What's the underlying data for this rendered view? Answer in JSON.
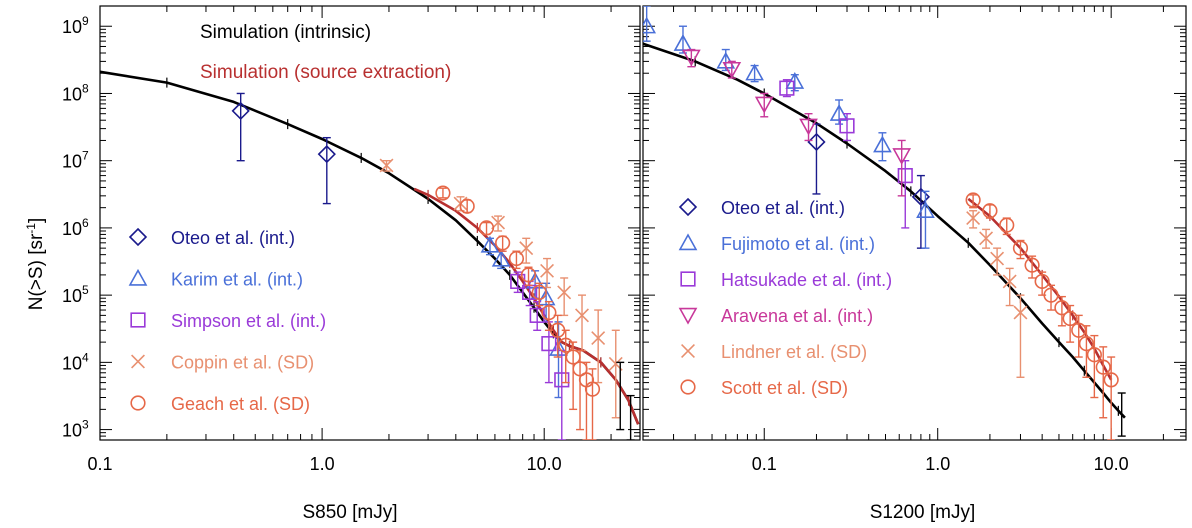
{
  "ylabel": "N(>S) [sr",
  "ylabel_sup": "-1",
  "ylabel_end": "]",
  "colors": {
    "oteo": "#1a1a8c",
    "karim": "#4a70d8",
    "simpson": "#9a3ad8",
    "coppin": "#e89070",
    "geach": "#e66848",
    "fujimoto": "#4a70d8",
    "hatsukade": "#9a3ad8",
    "aravena": "#c8389a",
    "lindner": "#e89070",
    "scott": "#e66848",
    "sim_intrinsic": "#000000",
    "sim_extract": "#b83030"
  },
  "y_ticks": [
    {
      "exp": "3",
      "v": 1000
    },
    {
      "exp": "4",
      "v": 10000
    },
    {
      "exp": "5",
      "v": 100000
    },
    {
      "exp": "6",
      "v": 1000000
    },
    {
      "exp": "7",
      "v": 10000000
    },
    {
      "exp": "8",
      "v": 100000000
    },
    {
      "exp": "9",
      "v": 1000000000
    }
  ],
  "chart_data": [
    {
      "type": "scatter",
      "xlabel": "S850 [mJy]",
      "ylabel": "N(>S) [sr-1]",
      "x_scale": "log",
      "y_scale": "log",
      "xlim": [
        0.1,
        27
      ],
      "ylim": [
        700,
        2000000000
      ],
      "x_ticks": [
        {
          "label": "0.1",
          "v": 0.1
        },
        {
          "label": "1.0",
          "v": 1.0
        },
        {
          "label": "10.0",
          "v": 10.0
        }
      ],
      "legend_top": [
        {
          "label": "Simulation (intrinsic)",
          "color": "#000000"
        },
        {
          "label": "Simulation (source extraction)",
          "color": "#b83030"
        }
      ],
      "legend": [
        {
          "label": "Oteo et al. (int.)",
          "marker": "diamond",
          "key": "oteo"
        },
        {
          "label": "Karim et al. (int.)",
          "marker": "triangle",
          "key": "karim"
        },
        {
          "label": "Simpson et al. (int.)",
          "marker": "square",
          "key": "simpson"
        },
        {
          "label": "Coppin et al. (SD)",
          "marker": "cross",
          "key": "coppin"
        },
        {
          "label": "Geach et al. (SD)",
          "marker": "circle",
          "key": "geach"
        }
      ],
      "curves": [
        {
          "name": "Simulation (intrinsic)",
          "key": "sim_intrinsic",
          "x": [
            0.1,
            0.2,
            0.4,
            0.7,
            1.0,
            1.5,
            2.0,
            3.0,
            4.0,
            5.0,
            6.0,
            7.0,
            8.0,
            9.0,
            10.0,
            11.0,
            12.0,
            13.0,
            15.0,
            18.0,
            21.0,
            24.0,
            26.5
          ],
          "y": [
            210000000,
            145000000,
            75000000,
            35000000,
            21000000,
            11000000,
            6500000,
            2700000,
            1300000,
            640000,
            350000,
            200000,
            110000,
            65000,
            40000,
            27000,
            20000,
            17500,
            15000,
            10000,
            5500,
            2700,
            1200
          ]
        },
        {
          "name": "Simulation (source extraction)",
          "key": "sim_extract",
          "x": [
            2.6,
            3.0,
            4.0,
            5.0,
            6.0,
            7.0,
            8.0,
            9.0,
            10.0,
            11.0,
            12.0,
            13.0,
            15.0,
            18.0,
            21.0,
            24.0,
            26.5
          ],
          "y": [
            3800000,
            3100000,
            1800000,
            1000000,
            550000,
            300000,
            160000,
            90000,
            50000,
            30000,
            20000,
            17500,
            15000,
            10000,
            5500,
            2700,
            1200
          ]
        }
      ],
      "series": [
        {
          "key": "oteo",
          "marker": "diamond",
          "points": [
            {
              "x": 0.43,
              "y": 55000000,
              "lo": 10000000,
              "hi": 100000000
            },
            {
              "x": 1.05,
              "y": 12500000,
              "lo": 2300000,
              "hi": 22000000
            }
          ]
        },
        {
          "key": "karim",
          "marker": "triangle",
          "points": [
            {
              "x": 5.7,
              "y": 550000,
              "lo": 400000,
              "hi": 700000
            },
            {
              "x": 6.4,
              "y": 340000,
              "lo": 250000,
              "hi": 450000
            },
            {
              "x": 9.1,
              "y": 160000,
              "lo": 90000,
              "hi": 230000
            },
            {
              "x": 10.2,
              "y": 90000,
              "lo": 40000,
              "hi": 150000
            },
            {
              "x": 11.6,
              "y": 16000,
              "lo": 3000,
              "hi": 40000
            }
          ]
        },
        {
          "key": "simpson",
          "marker": "square",
          "points": [
            {
              "x": 7.6,
              "y": 160000,
              "lo": 110000,
              "hi": 220000
            },
            {
              "x": 8.6,
              "y": 110000,
              "lo": 70000,
              "hi": 160000
            },
            {
              "x": 9.3,
              "y": 50000,
              "lo": 30000,
              "hi": 80000
            },
            {
              "x": 10.5,
              "y": 19000,
              "lo": 5000,
              "hi": 40000
            },
            {
              "x": 12.0,
              "y": 5500,
              "lo": 700,
              "hi": 15000
            }
          ]
        },
        {
          "key": "coppin",
          "marker": "cross",
          "points": [
            {
              "x": 1.95,
              "y": 8500000,
              "lo": 7000000,
              "hi": 10000000
            },
            {
              "x": 4.2,
              "y": 2300000,
              "lo": 1800000,
              "hi": 2900000
            },
            {
              "x": 6.2,
              "y": 1200000,
              "lo": 900000,
              "hi": 1500000
            },
            {
              "x": 8.3,
              "y": 500000,
              "lo": 300000,
              "hi": 700000
            },
            {
              "x": 10.3,
              "y": 230000,
              "lo": 130000,
              "hi": 350000
            },
            {
              "x": 12.3,
              "y": 110000,
              "lo": 50000,
              "hi": 180000
            },
            {
              "x": 14.8,
              "y": 50000,
              "lo": 15000,
              "hi": 100000
            },
            {
              "x": 17.5,
              "y": 23000,
              "lo": 5000,
              "hi": 60000
            },
            {
              "x": 21.0,
              "y": 9500,
              "lo": 1500,
              "hi": 30000
            }
          ]
        },
        {
          "key": "geach",
          "marker": "circle",
          "points": [
            {
              "x": 3.5,
              "y": 3300000,
              "lo": 2800000,
              "hi": 3900000
            },
            {
              "x": 4.5,
              "y": 2100000,
              "lo": 1700000,
              "hi": 2600000
            },
            {
              "x": 5.5,
              "y": 1000000,
              "lo": 800000,
              "hi": 1200000
            },
            {
              "x": 6.5,
              "y": 600000,
              "lo": 450000,
              "hi": 750000
            },
            {
              "x": 7.5,
              "y": 350000,
              "lo": 250000,
              "hi": 450000
            },
            {
              "x": 8.5,
              "y": 200000,
              "lo": 140000,
              "hi": 260000
            },
            {
              "x": 9.5,
              "y": 110000,
              "lo": 70000,
              "hi": 150000
            },
            {
              "x": 10.5,
              "y": 55000,
              "lo": 30000,
              "hi": 80000
            },
            {
              "x": 11.5,
              "y": 30000,
              "lo": 12000,
              "hi": 50000
            },
            {
              "x": 12.5,
              "y": 18000,
              "lo": 5000,
              "hi": 30000
            },
            {
              "x": 13.5,
              "y": 12000,
              "lo": 2000,
              "hi": 20000
            },
            {
              "x": 14.5,
              "y": 8000,
              "lo": 1000,
              "hi": 15000
            },
            {
              "x": 15.5,
              "y": 5500,
              "lo": 700,
              "hi": 10000
            },
            {
              "x": 16.5,
              "y": 4000,
              "lo": 700,
              "hi": 8000
            }
          ]
        },
        {
          "key": "sim_intrinsic",
          "marker": "errorbar",
          "points": [
            {
              "x": 22.0,
              "y": 4200,
              "lo": 1000,
              "hi": 10000
            },
            {
              "x": 24.5,
              "y": 1800,
              "lo": 700,
              "hi": 3200
            }
          ]
        }
      ]
    },
    {
      "type": "scatter",
      "xlabel": "S1200 [mJy]",
      "ylabel": "N(>S) [sr-1]",
      "x_scale": "log",
      "y_scale": "log",
      "xlim": [
        0.02,
        27
      ],
      "ylim": [
        700,
        2000000000
      ],
      "x_ticks": [
        {
          "label": "0.1",
          "v": 0.1
        },
        {
          "label": "1.0",
          "v": 1.0
        },
        {
          "label": "10.0",
          "v": 10.0
        }
      ],
      "legend": [
        {
          "label": "Oteo et al. (int.)",
          "marker": "diamond",
          "key": "oteo"
        },
        {
          "label": "Fujimoto et al. (int.)",
          "marker": "triangle",
          "key": "fujimoto"
        },
        {
          "label": "Hatsukade et al. (int.)",
          "marker": "square",
          "key": "hatsukade"
        },
        {
          "label": "Aravena et al. (int.)",
          "marker": "itriangle",
          "key": "aravena"
        },
        {
          "label": "Lindner et al. (SD)",
          "marker": "cross",
          "key": "lindner"
        },
        {
          "label": "Scott et al. (SD)",
          "marker": "circle",
          "key": "scott"
        }
      ],
      "curves": [
        {
          "name": "Simulation (intrinsic)",
          "key": "sim_intrinsic",
          "x": [
            0.02,
            0.04,
            0.07,
            0.1,
            0.2,
            0.3,
            0.5,
            0.7,
            1.0,
            1.5,
            2.0,
            3.0,
            4.0,
            5.0,
            6.0,
            7.0,
            8.0,
            9.0,
            10.0,
            11.0,
            12.0
          ],
          "y": [
            550000000,
            300000000,
            160000000,
            100000000,
            36000000,
            18000000,
            7000000,
            3500000,
            1500000,
            600000,
            280000,
            90000,
            38000,
            20000,
            12000,
            7500,
            5000,
            3500,
            2500,
            1900,
            1500
          ]
        },
        {
          "name": "Simulation (source extraction)",
          "key": "sim_extract",
          "x": [
            1.5,
            2.0,
            3.0,
            4.0,
            5.0,
            6.0,
            7.0,
            8.0,
            9.0,
            10.0
          ],
          "y": [
            2700000,
            1500000,
            500000,
            200000,
            95000,
            50000,
            28000,
            16000,
            9000,
            5500
          ]
        }
      ],
      "series": [
        {
          "key": "oteo",
          "marker": "diamond",
          "points": [
            {
              "x": 0.2,
              "y": 19000000,
              "lo": 3200000,
              "hi": 35000000
            },
            {
              "x": 0.8,
              "y": 2900000,
              "lo": 500000,
              "hi": 6000000
            }
          ]
        },
        {
          "key": "fujimoto",
          "marker": "triangle",
          "points": [
            {
              "x": 0.021,
              "y": 1000000000,
              "lo": 600000000,
              "hi": 2000000000
            },
            {
              "x": 0.034,
              "y": 550000000,
              "lo": 400000000,
              "hi": 1000000000
            },
            {
              "x": 0.06,
              "y": 300000000,
              "lo": 220000000,
              "hi": 450000000
            },
            {
              "x": 0.088,
              "y": 200000000,
              "lo": 150000000,
              "hi": 260000000
            },
            {
              "x": 0.15,
              "y": 150000000,
              "lo": 110000000,
              "hi": 190000000
            },
            {
              "x": 0.27,
              "y": 50000000,
              "lo": 35000000,
              "hi": 80000000
            },
            {
              "x": 0.48,
              "y": 17000000,
              "lo": 10000000,
              "hi": 26000000
            },
            {
              "x": 0.85,
              "y": 1800000,
              "lo": 500000,
              "hi": 3500000
            }
          ]
        },
        {
          "key": "hatsukade",
          "marker": "square",
          "points": [
            {
              "x": 0.135,
              "y": 120000000,
              "lo": 90000000,
              "hi": 160000000
            },
            {
              "x": 0.3,
              "y": 33000000,
              "lo": 20000000,
              "hi": 50000000
            },
            {
              "x": 0.65,
              "y": 6000000,
              "lo": 1000000,
              "hi": 10000000
            }
          ]
        },
        {
          "key": "aravena",
          "marker": "itriangle",
          "points": [
            {
              "x": 0.038,
              "y": 350000000,
              "lo": 250000000,
              "hi": 450000000
            },
            {
              "x": 0.065,
              "y": 230000000,
              "lo": 170000000,
              "hi": 300000000
            },
            {
              "x": 0.1,
              "y": 70000000,
              "lo": 45000000,
              "hi": 100000000
            },
            {
              "x": 0.18,
              "y": 33000000,
              "lo": 20000000,
              "hi": 50000000
            },
            {
              "x": 0.62,
              "y": 12000000,
              "lo": 3000000,
              "hi": 20000000
            }
          ]
        },
        {
          "key": "lindner",
          "marker": "cross",
          "points": [
            {
              "x": 1.6,
              "y": 1400000,
              "lo": 1000000,
              "hi": 1800000
            },
            {
              "x": 1.9,
              "y": 700000,
              "lo": 500000,
              "hi": 950000
            },
            {
              "x": 2.2,
              "y": 350000,
              "lo": 200000,
              "hi": 500000
            },
            {
              "x": 2.6,
              "y": 160000,
              "lo": 70000,
              "hi": 250000
            },
            {
              "x": 3.0,
              "y": 55000,
              "lo": 6000,
              "hi": 100000
            }
          ]
        },
        {
          "key": "scott",
          "marker": "circle",
          "points": [
            {
              "x": 1.6,
              "y": 2600000,
              "lo": 2000000,
              "hi": 3100000
            },
            {
              "x": 2.0,
              "y": 1800000,
              "lo": 1400000,
              "hi": 2200000
            },
            {
              "x": 2.5,
              "y": 1100000,
              "lo": 800000,
              "hi": 1400000
            },
            {
              "x": 3.0,
              "y": 500000,
              "lo": 350000,
              "hi": 650000
            },
            {
              "x": 3.5,
              "y": 280000,
              "lo": 180000,
              "hi": 380000
            },
            {
              "x": 4.0,
              "y": 160000,
              "lo": 100000,
              "hi": 220000
            },
            {
              "x": 4.5,
              "y": 100000,
              "lo": 60000,
              "hi": 140000
            },
            {
              "x": 5.2,
              "y": 65000,
              "lo": 35000,
              "hi": 95000
            },
            {
              "x": 5.8,
              "y": 45000,
              "lo": 20000,
              "hi": 70000
            },
            {
              "x": 6.5,
              "y": 30000,
              "lo": 12000,
              "hi": 50000
            },
            {
              "x": 7.2,
              "y": 19000,
              "lo": 6000,
              "hi": 35000
            },
            {
              "x": 8.0,
              "y": 13000,
              "lo": 3000,
              "hi": 25000
            },
            {
              "x": 9.0,
              "y": 8500,
              "lo": 1500,
              "hi": 17000
            },
            {
              "x": 10.0,
              "y": 5500,
              "lo": 700,
              "hi": 12000
            }
          ]
        },
        {
          "key": "sim_intrinsic",
          "marker": "errorbar",
          "points": [
            {
              "x": 11.5,
              "y": 2000,
              "lo": 800,
              "hi": 3500
            }
          ]
        }
      ]
    }
  ]
}
